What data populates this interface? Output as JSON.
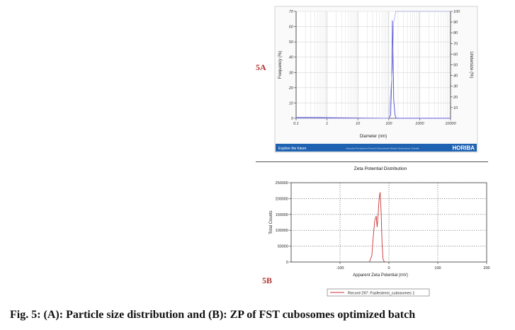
{
  "panel_labels": {
    "a": "5A",
    "b": "5B"
  },
  "caption": "Fig. 5: (A): Particle size distribution and (B): ZP of FST cubosomes optimized batch",
  "colors": {
    "panel_label": "#b03030",
    "psd_line": "#5b5bd6",
    "psd_cum": "#a0a0e0",
    "zeta_line": "#cc3333",
    "horiba_bar": "#1f62b1"
  },
  "horiba": {
    "left_text": "Explore the future",
    "middle_text": "Automotive Test Systems  |  Process & Environmental  |  Medical  |  Semiconductor  |  Scientific",
    "brand": "HORIBA"
  },
  "chart_data": [
    {
      "type": "line",
      "xlabel": "Diameter (nm)",
      "ylabel": "Frequency (%)",
      "y2label": "Undersize (%)",
      "x_scale": "log",
      "xlim": [
        0.1,
        10000
      ],
      "ylim": [
        0,
        70
      ],
      "y2lim": [
        0,
        100
      ],
      "x_ticks": [
        "0.1",
        "1",
        "10",
        "100",
        "1000",
        "10000"
      ],
      "y_ticks": [
        "0",
        "10",
        "20",
        "30",
        "40",
        "50",
        "60",
        "70"
      ],
      "y2_ticks": [
        "10",
        "20",
        "30",
        "40",
        "50",
        "60",
        "70",
        "80",
        "90",
        "100"
      ],
      "grid": true,
      "series": [
        {
          "x": [
            0.1,
            0.3,
            100,
            115,
            125,
            131,
            138,
            145,
            160,
            175,
            200,
            10000
          ],
          "y": [
            0.5,
            0.5,
            0,
            2,
            25,
            64,
            40,
            12,
            2,
            0,
            0,
            0
          ]
        },
        {
          "axis": "right",
          "x": [
            0.1,
            100,
            130,
            145,
            170,
            10000
          ],
          "y": [
            0,
            0,
            45,
            90,
            100,
            100
          ]
        }
      ]
    },
    {
      "type": "line",
      "title": "Zeta Potential Distribution",
      "xlabel": "Apparent Zeta Potential (mV)",
      "ylabel": "Total Counts",
      "xlim": [
        -200,
        200
      ],
      "ylim": [
        0,
        250000
      ],
      "x_ticks": [
        "-100",
        "0",
        "100",
        "200"
      ],
      "y_ticks": [
        "0",
        "50000",
        "100000",
        "150000",
        "200000",
        "250000"
      ],
      "grid": true,
      "legend": "bottom",
      "series": [
        {
          "name": "Record 297: Fasfesterol_cubosomes 1",
          "x": [
            -40,
            -35,
            -32,
            -29,
            -26,
            -24,
            -22,
            -20,
            -18,
            -16,
            -14,
            -12,
            -10,
            -8
          ],
          "y": [
            0,
            20000,
            80000,
            130000,
            145000,
            110000,
            150000,
            200000,
            220000,
            160000,
            60000,
            10000,
            2000,
            0
          ]
        }
      ]
    }
  ]
}
